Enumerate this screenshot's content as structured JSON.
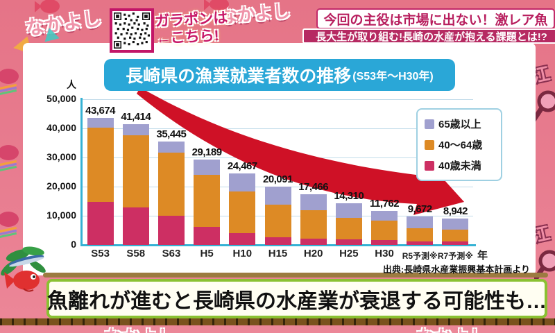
{
  "garapon": {
    "line1": "ガラポンは",
    "line2": "←こちら!"
  },
  "headlines": {
    "main": "今回の主役は市場に出ない！激レア魚",
    "sub": "長大生が取り組む!長崎の水産が抱える課題とは!?"
  },
  "chart": {
    "title_main": "長崎県の漁業就業者数の推移",
    "title_suffix": "(S53年〜H30年)",
    "y_unit": "人",
    "x_unit": "年",
    "source": "出典:長崎県水産業振興基本計画より"
  },
  "chart_data": {
    "type": "bar",
    "stacked": true,
    "title": "長崎県の漁業就業者数の推移(S53年〜H30年)",
    "categories": [
      "S53",
      "S58",
      "S63",
      "H5",
      "H10",
      "H15",
      "H20",
      "H25",
      "H30",
      "R5予測※",
      "R7予測※"
    ],
    "totals": [
      43674,
      41414,
      35445,
      29189,
      24467,
      20091,
      17466,
      14310,
      11762,
      9672,
      8942
    ],
    "total_labels": [
      "43,674",
      "41,414",
      "35,445",
      "29,189",
      "24,467",
      "20,091",
      "17,466",
      "14,310",
      "11,762",
      "9,672",
      "8,942"
    ],
    "series": [
      {
        "name": "40歳未満",
        "color": "#cd2f63",
        "values": [
          14700,
          12800,
          10100,
          6200,
          4100,
          2700,
          2200,
          1900,
          1600,
          1300,
          1100
        ]
      },
      {
        "name": "40〜64歳",
        "color": "#dd8a25",
        "values": [
          25600,
          24900,
          21600,
          17800,
          14300,
          11000,
          9800,
          7300,
          6800,
          4400,
          4200
        ]
      },
      {
        "name": "65歳以上",
        "color": "#a0a0cf",
        "values": [
          3374,
          3714,
          3745,
          5189,
          6067,
          6391,
          5466,
          5110,
          3362,
          3972,
          3642
        ]
      }
    ],
    "ylim": [
      0,
      50000
    ],
    "yticks": [
      {
        "value": 50000,
        "label": "50,000"
      },
      {
        "value": 40000,
        "label": "40,000"
      },
      {
        "value": 30000,
        "label": "30,000"
      },
      {
        "value": 20000,
        "label": "20,000"
      },
      {
        "value": 10000,
        "label": "10,000"
      },
      {
        "value": 0,
        "label": "0"
      }
    ],
    "grid": true,
    "legend_position": "right"
  },
  "legend": {
    "items": [
      {
        "label": "65歳以上",
        "color": "#a0a0cf"
      },
      {
        "label": "40〜64歳",
        "color": "#dd8a25"
      },
      {
        "label": "40歳未満",
        "color": "#cd2f63"
      }
    ]
  },
  "caption": {
    "text": "魚離れが進むと長崎県の水産業が衰退する可能性も…"
  },
  "decor": {
    "pattern_text": "なかよし",
    "badge_text": "江"
  },
  "colors": {
    "title_bg": "#2aa7d7",
    "axis": "#35b2d4",
    "arrow": "#cf1126",
    "headline_magenta": "#b62a62",
    "banner_green": "#8ac132",
    "qr_border": "#c21668"
  }
}
